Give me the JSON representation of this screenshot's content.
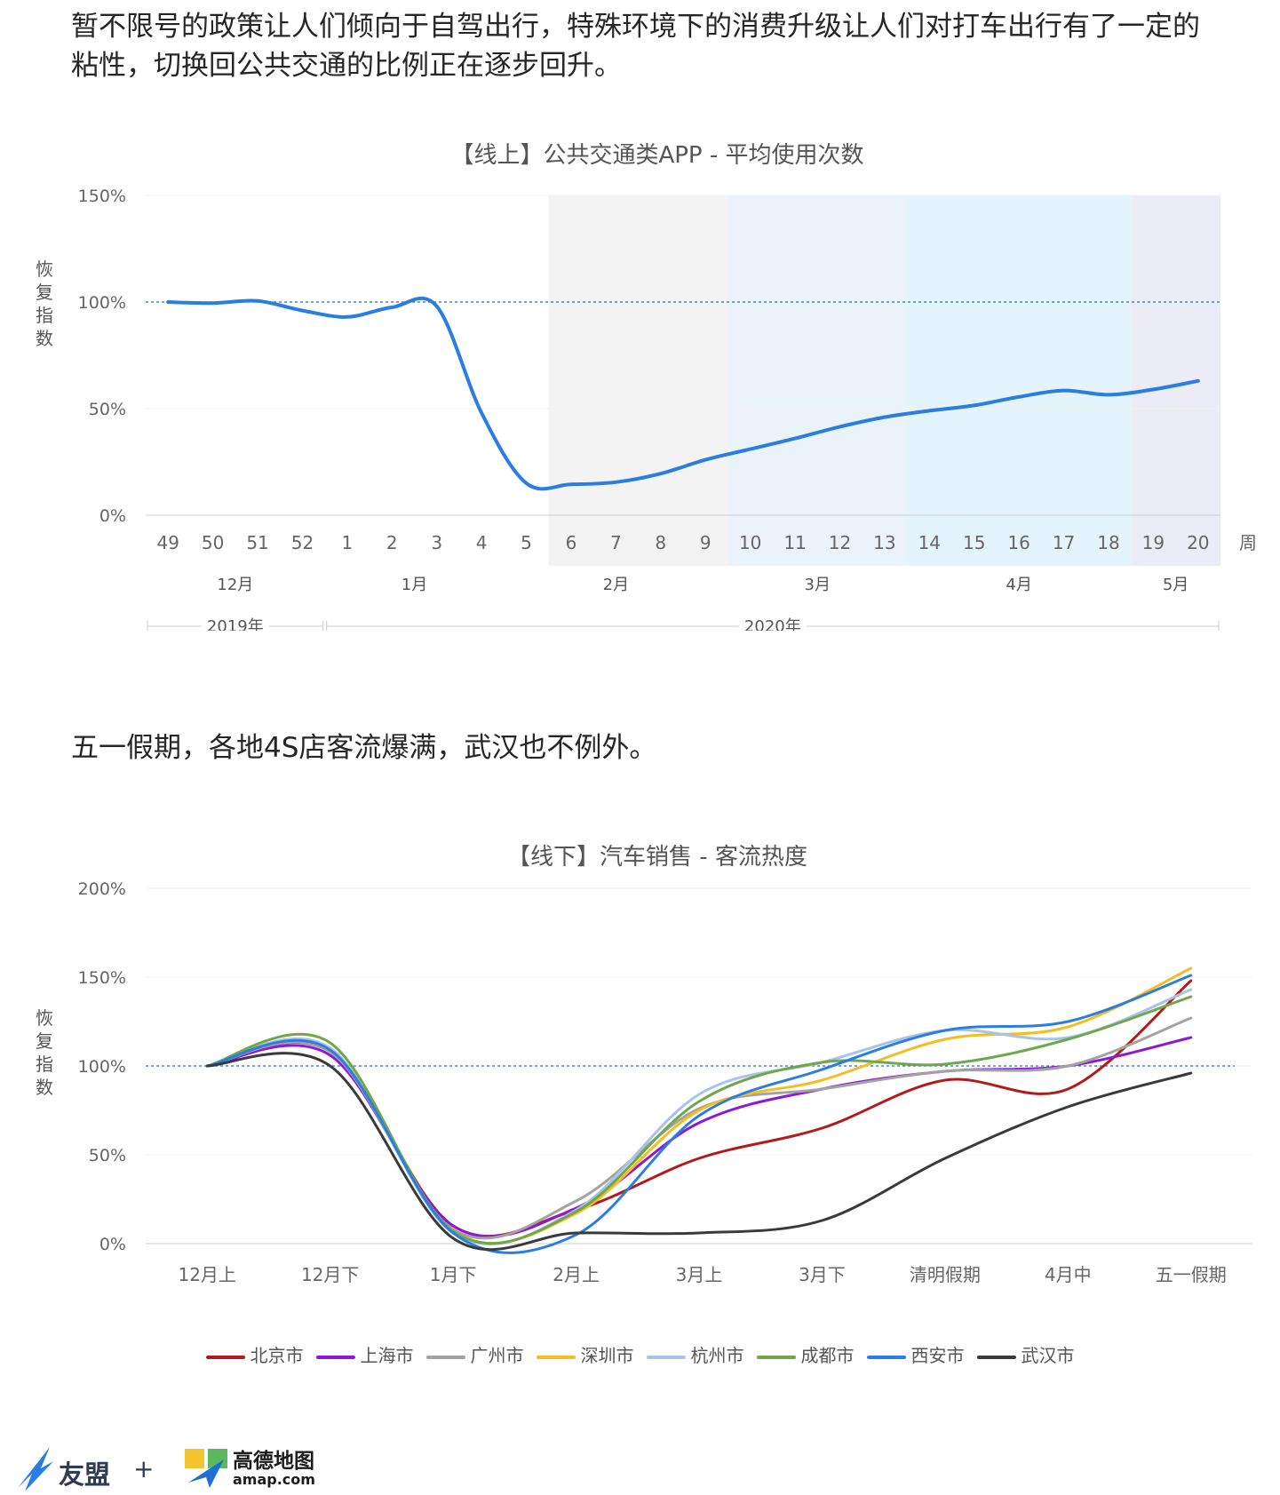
{
  "texts": {
    "para1": "暂不限号的政策让人们倾向于自驾出行，特殊环境下的消费升级让人们对打车出行有了一定的粘性，切换回公共交通的比例正在逐步回升。",
    "para2": "五一假期，各地4S店客流爆满，武汉也不例外。"
  },
  "footer": {
    "brand1": "友盟",
    "plus": "+",
    "brand2": "高德地图",
    "brand2_sub": "amap.com"
  },
  "chart_data": [
    {
      "type": "line",
      "title": "【线上】公共交通类APP - 平均使用次数",
      "ylabel": "恢复指数",
      "xlabel": "周",
      "ylim": [
        0,
        150
      ],
      "yticks": [
        "0%",
        "50%",
        "100%",
        "150%"
      ],
      "reference_line": 100,
      "x": [
        "49",
        "50",
        "51",
        "52",
        "1",
        "2",
        "3",
        "4",
        "5",
        "6",
        "7",
        "8",
        "9",
        "10",
        "11",
        "12",
        "13",
        "14",
        "15",
        "16",
        "17",
        "18",
        "19",
        "20"
      ],
      "months": [
        {
          "label": "12月",
          "from": 0,
          "to": 3
        },
        {
          "label": "1月",
          "from": 4,
          "to": 7
        },
        {
          "label": "2月",
          "from": 8,
          "to": 12
        },
        {
          "label": "3月",
          "from": 13,
          "to": 16
        },
        {
          "label": "4月",
          "from": 17,
          "to": 21
        },
        {
          "label": "5月",
          "from": 22,
          "to": 23
        }
      ],
      "years": [
        {
          "label": "2019年",
          "from": 0,
          "to": 3
        },
        {
          "label": "2020年",
          "from": 4,
          "to": 23
        }
      ],
      "shaded_bands": [
        {
          "from": 8.5,
          "to": 12.5,
          "color": "#f3f3f3"
        },
        {
          "from": 12.5,
          "to": 16.5,
          "color": "#eaf2fa"
        },
        {
          "from": 16.5,
          "to": 21.5,
          "color": "#e4f4fc"
        },
        {
          "from": 21.5,
          "to": 23.5,
          "color": "#ececf6"
        }
      ],
      "series": [
        {
          "color": "#2a7de1",
          "values": [
            100,
            99.5,
            100.5,
            96,
            93,
            97.5,
            98,
            48,
            15,
            14.5,
            15.5,
            19.5,
            26,
            31,
            36,
            41.5,
            46,
            49,
            51.5,
            55.5,
            58.5,
            56.5,
            59,
            63
          ]
        }
      ]
    },
    {
      "type": "line",
      "title": "【线下】汽车销售 - 客流热度",
      "ylabel": "恢复指数",
      "ylim": [
        0,
        200
      ],
      "yticks": [
        "0%",
        "50%",
        "100%",
        "150%",
        "200%"
      ],
      "reference_line": 100,
      "categories": [
        "12月上",
        "12月下",
        "1月下",
        "2月上",
        "3月上",
        "3月下",
        "清明假期",
        "4月中",
        "五一假期"
      ],
      "series": [
        {
          "name": "北京市",
          "color": "#b31b1b",
          "values": [
            100,
            108,
            10,
            19,
            48,
            65,
            92,
            87,
            148
          ]
        },
        {
          "name": "上海市",
          "color": "#8f18d6",
          "values": [
            100,
            106,
            10,
            20,
            68,
            87,
            97,
            100,
            116
          ]
        },
        {
          "name": "广州市",
          "color": "#a3a3a3",
          "values": [
            100,
            108,
            8,
            24,
            76,
            87,
            97,
            100,
            127
          ]
        },
        {
          "name": "深圳市",
          "color": "#f5bd1f",
          "values": [
            100,
            110,
            7,
            17,
            75,
            92,
            115,
            122,
            155
          ]
        },
        {
          "name": "杭州市",
          "color": "#a7c4e6",
          "values": [
            100,
            110,
            6,
            19,
            84,
            102,
            120,
            116,
            143
          ]
        },
        {
          "name": "成都市",
          "color": "#6fa84a",
          "values": [
            100,
            113,
            7,
            18,
            80,
            102,
            101,
            115,
            139
          ]
        },
        {
          "name": "西安市",
          "color": "#2a7de1",
          "values": [
            100,
            109,
            6,
            5,
            72,
            98,
            120,
            125,
            151
          ]
        },
        {
          "name": "武汉市",
          "color": "#3a3a3a",
          "values": [
            100,
            100,
            3,
            6,
            6,
            13,
            48,
            77,
            96
          ]
        }
      ]
    }
  ]
}
